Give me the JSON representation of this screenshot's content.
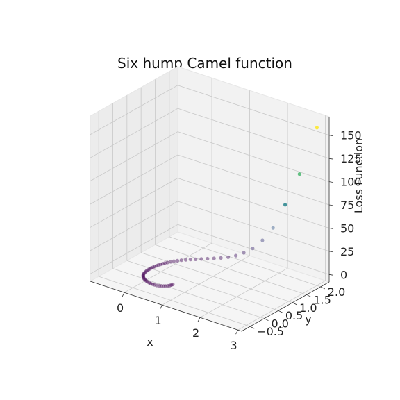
{
  "chart_data": {
    "type": "scatter",
    "projection": "3d",
    "title": "Six hump Camel function",
    "xlabel": "x",
    "ylabel": "y",
    "zlabel": "Loss Function",
    "xlim": [
      -0.9,
      3.1
    ],
    "ylim": [
      -0.8,
      2.3
    ],
    "zlim": [
      -8,
      170
    ],
    "xticks": [
      0,
      1,
      2,
      3
    ],
    "yticks": [
      -0.5,
      0.0,
      0.5,
      1.0,
      1.5,
      2.0
    ],
    "yticklabels": [
      "−0.5",
      "0.0",
      "0.5",
      "1.0",
      "1.5",
      "2.0"
    ],
    "zticks": [
      0,
      25,
      50,
      75,
      100,
      125,
      150
    ],
    "grid": true,
    "colormap": "viridis",
    "cmap_colors": [
      "#440154",
      "#3b528b",
      "#21918c",
      "#5ec962",
      "#fde725"
    ],
    "point_alpha": 0.45,
    "series": [
      {
        "x": [
          3.0,
          2.6,
          2.28,
          2.02,
          1.8,
          1.6,
          1.42,
          1.26,
          1.11,
          0.97,
          0.84,
          0.72,
          0.61,
          0.51,
          0.42,
          0.34,
          0.27,
          0.21,
          0.16,
          0.12,
          0.08,
          0.05,
          0.03,
          0.01,
          -0.01,
          -0.02,
          -0.03,
          -0.04,
          -0.05,
          -0.05,
          -0.05,
          -0.05,
          -0.04,
          -0.03,
          -0.02,
          0.0,
          0.02,
          0.05,
          0.08,
          0.11,
          0.15,
          0.19,
          0.23,
          0.28,
          0.33,
          0.38,
          0.43,
          0.48,
          0.53,
          0.58,
          0.62,
          0.66,
          0.69,
          0.72,
          0.74,
          0.75,
          0.76
        ],
        "y": [
          2.0,
          1.92,
          1.84,
          1.76,
          1.68,
          1.6,
          1.53,
          1.46,
          1.39,
          1.32,
          1.25,
          1.18,
          1.11,
          1.04,
          0.98,
          0.92,
          0.86,
          0.8,
          0.74,
          0.68,
          0.62,
          0.57,
          0.52,
          0.47,
          0.42,
          0.37,
          0.32,
          0.27,
          0.22,
          0.17,
          0.12,
          0.07,
          0.02,
          -0.03,
          -0.08,
          -0.12,
          -0.16,
          -0.2,
          -0.23,
          -0.26,
          -0.29,
          -0.31,
          -0.33,
          -0.35,
          -0.36,
          -0.37,
          -0.37,
          -0.37,
          -0.36,
          -0.34,
          -0.32,
          -0.29,
          -0.26,
          -0.22,
          -0.18,
          -0.14,
          -0.1
        ],
        "z": [
          162,
          108,
          72,
          45,
          30,
          20,
          14,
          10,
          7.5,
          6,
          5,
          4.2,
          3.6,
          3.1,
          2.7,
          2.3,
          2.0,
          1.7,
          1.5,
          1.3,
          1.1,
          0.9,
          0.8,
          0.7,
          0.6,
          0.5,
          0.4,
          0.3,
          0.25,
          0.2,
          0.15,
          0.1,
          0.05,
          0.0,
          -0.05,
          -0.1,
          -0.15,
          -0.2,
          -0.25,
          -0.3,
          -0.35,
          -0.4,
          -0.45,
          -0.5,
          -0.55,
          -0.6,
          -0.65,
          -0.7,
          -0.75,
          -0.8,
          -0.85,
          -0.9,
          -0.95,
          -0.98,
          -1.0,
          -1.02,
          -1.03
        ]
      }
    ]
  }
}
